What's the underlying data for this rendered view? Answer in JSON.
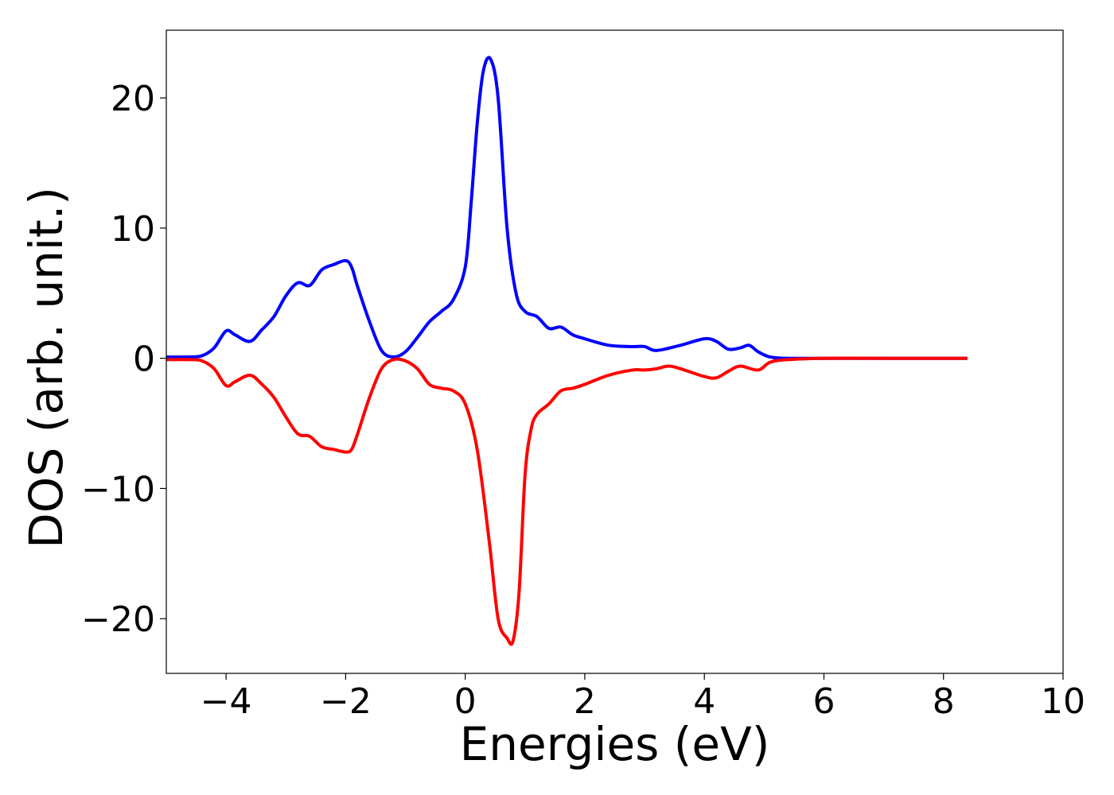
{
  "chart_data": {
    "type": "line",
    "title": "",
    "xlabel": "Energies (eV)",
    "ylabel": "DOS (arb. unit.)",
    "xlim": [
      -5,
      10
    ],
    "ylim": [
      -24.2,
      25.2
    ],
    "grid": false,
    "legend": "none",
    "xticks": [
      {
        "value": -4,
        "label": "−4"
      },
      {
        "value": -2,
        "label": "−2"
      },
      {
        "value": 0,
        "label": "0"
      },
      {
        "value": 2,
        "label": "2"
      },
      {
        "value": 4,
        "label": "4"
      },
      {
        "value": 6,
        "label": "6"
      },
      {
        "value": 8,
        "label": "8"
      },
      {
        "value": 10,
        "label": "10"
      }
    ],
    "yticks": [
      {
        "value": -20,
        "label": "−20"
      },
      {
        "value": -10,
        "label": "−10"
      },
      {
        "value": 0,
        "label": "0"
      },
      {
        "value": 10,
        "label": "10"
      },
      {
        "value": 20,
        "label": "20"
      }
    ],
    "series": [
      {
        "color": "#0000ff",
        "x": [
          -5.0,
          -4.6,
          -4.4,
          -4.2,
          -4.0,
          -3.85,
          -3.6,
          -3.4,
          -3.2,
          -3.0,
          -2.8,
          -2.6,
          -2.4,
          -2.2,
          -2.0,
          -1.9,
          -1.8,
          -1.6,
          -1.4,
          -1.2,
          -1.0,
          -0.8,
          -0.6,
          -0.4,
          -0.2,
          0.0,
          0.1,
          0.2,
          0.3,
          0.42,
          0.55,
          0.7,
          0.85,
          1.0,
          1.2,
          1.4,
          1.6,
          1.8,
          2.0,
          2.4,
          2.8,
          3.0,
          3.2,
          3.6,
          4.0,
          4.2,
          4.4,
          4.6,
          4.75,
          4.9,
          5.1,
          5.4,
          6.0,
          7.0,
          8.4
        ],
        "y": [
          0.1,
          0.1,
          0.2,
          0.8,
          2.1,
          1.8,
          1.3,
          2.2,
          3.2,
          4.8,
          5.8,
          5.6,
          6.8,
          7.2,
          7.5,
          7.0,
          5.5,
          2.8,
          0.6,
          0.1,
          0.5,
          1.6,
          2.8,
          3.6,
          4.5,
          7.0,
          12.0,
          18.0,
          22.0,
          23.0,
          20.0,
          10.0,
          5.0,
          3.6,
          3.2,
          2.3,
          2.4,
          1.8,
          1.5,
          1.0,
          0.9,
          0.9,
          0.6,
          1.0,
          1.5,
          1.3,
          0.7,
          0.8,
          1.0,
          0.5,
          0.1,
          0.0,
          0.0,
          0.0,
          0.0
        ]
      },
      {
        "color": "#ff0000",
        "x": [
          -5.0,
          -4.6,
          -4.4,
          -4.2,
          -4.0,
          -3.85,
          -3.6,
          -3.4,
          -3.2,
          -3.0,
          -2.8,
          -2.6,
          -2.4,
          -2.2,
          -2.0,
          -1.9,
          -1.8,
          -1.6,
          -1.4,
          -1.2,
          -1.0,
          -0.8,
          -0.6,
          -0.4,
          -0.2,
          0.0,
          0.2,
          0.4,
          0.55,
          0.7,
          0.8,
          0.9,
          1.0,
          1.1,
          1.2,
          1.4,
          1.6,
          1.8,
          2.0,
          2.4,
          2.8,
          3.0,
          3.2,
          3.4,
          3.6,
          4.0,
          4.2,
          4.4,
          4.6,
          4.9,
          5.1,
          5.4,
          6.0,
          7.0,
          8.4
        ],
        "y": [
          -0.1,
          -0.1,
          -0.2,
          -0.8,
          -2.1,
          -1.8,
          -1.3,
          -2.0,
          -3.0,
          -4.5,
          -5.8,
          -6.0,
          -6.8,
          -7.0,
          -7.2,
          -7.0,
          -5.8,
          -3.0,
          -0.8,
          -0.1,
          -0.2,
          -0.8,
          -2.0,
          -2.3,
          -2.5,
          -3.5,
          -7.0,
          -14.0,
          -20.0,
          -21.5,
          -21.7,
          -18.0,
          -9.0,
          -5.5,
          -4.3,
          -3.5,
          -2.5,
          -2.3,
          -2.0,
          -1.3,
          -0.9,
          -0.9,
          -0.8,
          -0.6,
          -0.8,
          -1.4,
          -1.5,
          -1.0,
          -0.6,
          -0.9,
          -0.3,
          -0.1,
          0.0,
          0.0,
          0.0
        ]
      }
    ]
  }
}
